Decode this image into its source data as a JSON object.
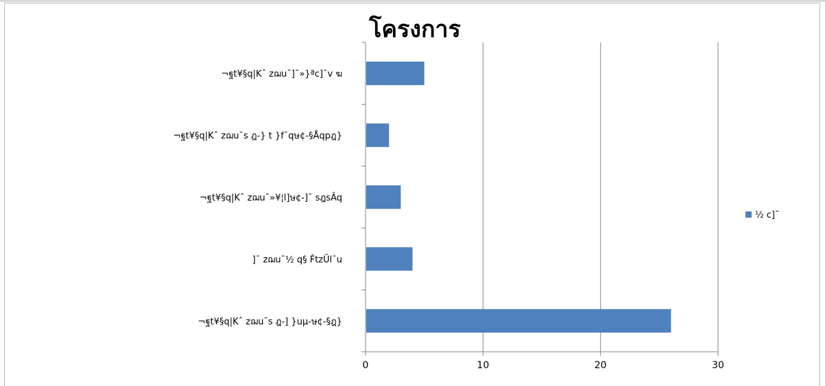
{
  "chart_data": {
    "type": "bar",
    "orientation": "horizontal",
    "title": "โครงการ",
    "categories": [
      "¬ฐt¥§q|Kˆ zฌu¯s ฎ-] }uµ-ษ¢-§ฎ}",
      "]¯ zฌu¯½ q§ ḞtzÜl¯u",
      "¬ฐt¥§q|Kˆ zฌu¯»¥¦l]ษ¢-]¯ sฎsÂq",
      "¬ฐt¥§q|Kˆ zฌu¯s ฎ-} t }f¯qษ¢-§Åqpฎ}",
      "¬ฐt¥§q|Kˆ zฌu¯]¯»}ªc]¯v ฆ"
    ],
    "series": [
      {
        "name": "½ c]¯",
        "values": [
          26,
          4,
          3,
          2,
          5
        ],
        "color": "#4f81bd"
      }
    ],
    "xlim": [
      0,
      30
    ],
    "xticks": [
      0,
      10,
      20,
      30
    ],
    "grid": true,
    "legend": "right"
  }
}
